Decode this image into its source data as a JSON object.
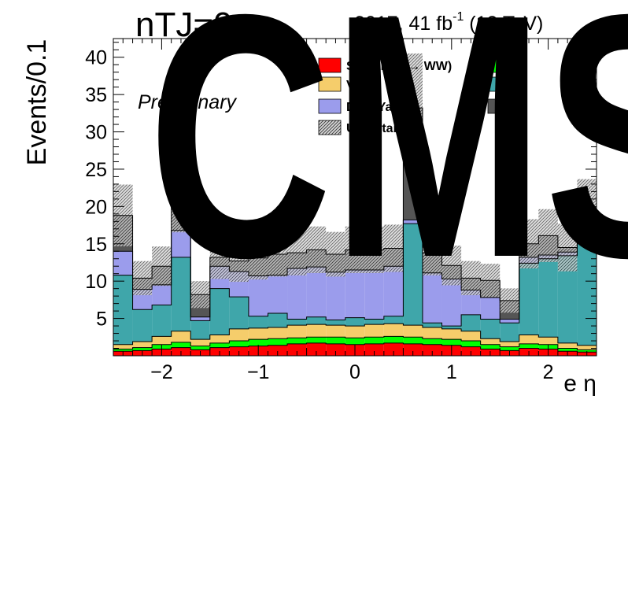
{
  "header": {
    "njet_label": "nTJ=0",
    "lumi_label": "2017, 41 fb",
    "lumi_exp": "-1",
    "energy_label": " (13 TeV)",
    "preliminary": "Preliminary",
    "watermark": "CMS"
  },
  "colors": {
    "signal": "#ff0000",
    "ggww": "#00ff00",
    "vv": "#f5cd6b",
    "ttbar": "#3fa6aa",
    "dy": "#9b9cec",
    "other": "#555555",
    "uncertainty": "#b0b0b0"
  },
  "chart_data": {
    "type": "bar",
    "stacked": true,
    "title": "",
    "xlabel": "e η",
    "ylabel": "Events/0.1",
    "xlim": [
      -2.5,
      2.5
    ],
    "ylim": [
      0,
      42.5
    ],
    "x_ticks": [
      "−2",
      "−1",
      "0",
      "1",
      "2"
    ],
    "x_tick_values": [
      -2,
      -1,
      0,
      1,
      2
    ],
    "y_ticks": [
      "5",
      "10",
      "15",
      "20",
      "25",
      "30",
      "35",
      "40"
    ],
    "y_tick_values": [
      5,
      10,
      15,
      20,
      25,
      30,
      35,
      40
    ],
    "bin_edges": [
      -2.5,
      -2.3,
      -2.1,
      -1.9,
      -1.7,
      -1.5,
      -1.3,
      -1.1,
      -0.9,
      -0.7,
      -0.5,
      -0.3,
      -0.1,
      0.1,
      0.3,
      0.5,
      0.7,
      0.9,
      1.1,
      1.3,
      1.5,
      1.7,
      1.9,
      2.1,
      2.3,
      2.5
    ],
    "series": [
      {
        "name": "Signal(GG→ WW)",
        "color_key": "signal",
        "values": [
          0.6,
          0.7,
          0.9,
          1.1,
          0.8,
          1.1,
          1.2,
          1.3,
          1.4,
          1.6,
          1.7,
          1.6,
          1.5,
          1.6,
          1.7,
          1.6,
          1.5,
          1.4,
          1.2,
          0.9,
          0.7,
          1.0,
          0.9,
          0.6,
          0.5
        ]
      },
      {
        "name": "",
        "color_key": "ggww",
        "values": [
          0.3,
          0.4,
          0.6,
          0.7,
          0.5,
          0.6,
          0.8,
          0.9,
          0.9,
          0.8,
          0.8,
          0.9,
          0.9,
          0.9,
          0.9,
          0.9,
          0.8,
          0.8,
          0.8,
          0.6,
          0.5,
          0.6,
          0.6,
          0.4,
          0.3
        ]
      },
      {
        "name": "VV",
        "color_key": "vv",
        "values": [
          0.6,
          0.8,
          1.1,
          1.5,
          0.9,
          1.1,
          1.6,
          1.5,
          1.5,
          1.7,
          1.7,
          1.6,
          1.6,
          1.7,
          1.7,
          1.6,
          1.5,
          1.4,
          1.3,
          0.8,
          0.7,
          1.2,
          1.0,
          0.7,
          0.6
        ]
      },
      {
        "name": "",
        "color_key": "ttbar",
        "values": [
          9.3,
          4.3,
          4.2,
          9.9,
          2.5,
          6.2,
          4.3,
          1.6,
          1.9,
          0.8,
          1.0,
          0.7,
          1.1,
          0.7,
          1.0,
          13.6,
          0.6,
          0.4,
          2.2,
          2.6,
          2.5,
          9.6,
          10.5,
          11.7,
          14.6
        ]
      },
      {
        "name": "Drell Yan",
        "color_key": "dy",
        "values": [
          3.2,
          2.7,
          2.7,
          3.6,
          0.5,
          3.0,
          3.4,
          5.4,
          5.1,
          6.8,
          6.7,
          6.4,
          6.4,
          6.6,
          6.7,
          0.5,
          6.7,
          6.3,
          3.3,
          2.9,
          0.5,
          0.8,
          0.5,
          0.5,
          0.5
        ]
      },
      {
        "name": "",
        "color_key": "other",
        "values": [
          4.8,
          1.5,
          2.5,
          4.4,
          3.0,
          1.2,
          1.4,
          2.4,
          2.8,
          2.1,
          2.3,
          2.4,
          2.7,
          2.7,
          2.4,
          15.0,
          2.7,
          1.8,
          1.6,
          2.3,
          2.5,
          1.8,
          2.6,
          0.6,
          2.9
        ]
      }
    ],
    "uncertainty_band": {
      "name": "Uncertainty",
      "relative": 0.22
    },
    "legend": {
      "placement": "top",
      "entries": [
        {
          "label": "Signal(GG→ WW)",
          "color_key": "signal"
        },
        {
          "label": "",
          "color_key": "ggww"
        },
        {
          "label": "VV",
          "color_key": "vv"
        },
        {
          "label": "",
          "color_key": "ttbar"
        },
        {
          "label": "Drell Yan",
          "color_key": "dy"
        },
        {
          "label": "",
          "color_key": "other"
        },
        {
          "label": "Uncertainty",
          "color_key": "uncertainty",
          "hatched": true
        }
      ]
    }
  }
}
